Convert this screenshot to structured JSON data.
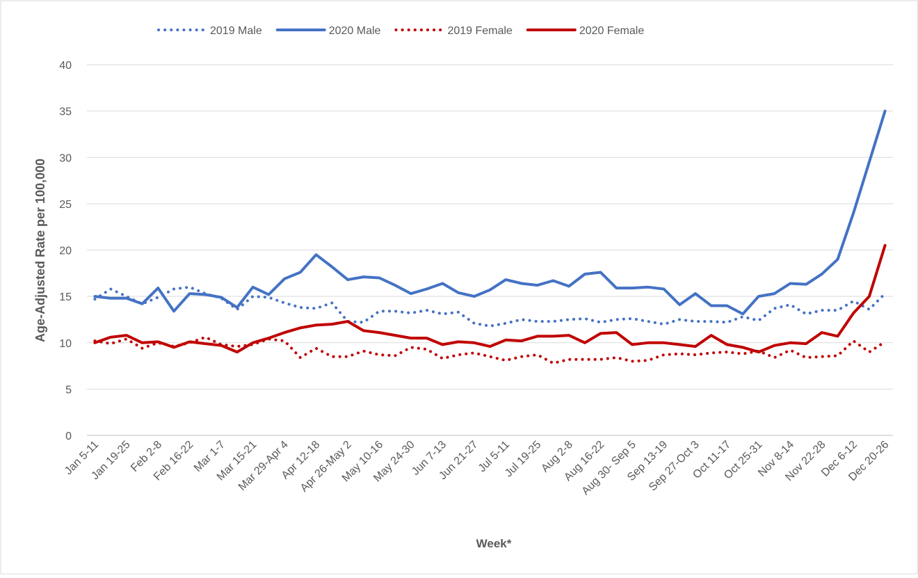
{
  "chart_data": {
    "type": "line",
    "x_label": "Week*",
    "y_label": "Age-Adjusted Rate per 100,000",
    "categories": [
      "Jan 5-11",
      null,
      "Jan 19-25",
      null,
      "Feb 2-8",
      null,
      "Feb 16-22",
      null,
      "Mar 1-7",
      null,
      "Mar 15-21",
      null,
      "Mar 29-Apr 4",
      null,
      "Apr 12-18",
      null,
      "Apr 26-May 2",
      null,
      "May 10-16",
      null,
      "May 24-30",
      null,
      "Jun 7-13",
      null,
      "Jun 21-27",
      null,
      "Jul 5-11",
      null,
      "Jul 19-25",
      null,
      "Aug 2-8",
      null,
      "Aug 16-22",
      null,
      "Aug 30- Sep 5",
      null,
      "Sep 13-19",
      null,
      "Sep 27-Oct 3",
      null,
      "Oct 11-17",
      null,
      "Oct 25-31",
      null,
      "Nov 8-14",
      null,
      "Nov 22-28",
      null,
      "Dec 6-12",
      null,
      "Dec 20-26"
    ],
    "series": [
      {
        "name": "2019 Male",
        "color": "#4472c4",
        "style": "dotted",
        "values": [
          14.7,
          15.8,
          15.0,
          14.2,
          14.9,
          15.8,
          16.0,
          15.3,
          14.8,
          13.6,
          15.0,
          14.9,
          14.3,
          13.8,
          13.7,
          14.3,
          12.3,
          12.2,
          13.4,
          13.4,
          13.2,
          13.5,
          13.1,
          13.3,
          12.1,
          11.8,
          12.1,
          12.5,
          12.3,
          12.3,
          12.5,
          12.6,
          12.2,
          12.5,
          12.6,
          12.3,
          12.0,
          12.5,
          12.3,
          12.3,
          12.2,
          12.8,
          12.4,
          13.7,
          14.1,
          13.1,
          13.5,
          13.5,
          14.5,
          13.6,
          15.3
        ]
      },
      {
        "name": "2020 Male",
        "color": "#4472c4",
        "style": "solid",
        "values": [
          15.0,
          14.8,
          14.8,
          14.2,
          15.9,
          13.4,
          15.3,
          15.2,
          14.9,
          13.8,
          16.0,
          15.2,
          16.9,
          17.6,
          19.5,
          18.2,
          16.8,
          17.1,
          17.0,
          16.2,
          15.3,
          15.8,
          16.4,
          15.4,
          15.0,
          15.7,
          16.8,
          16.4,
          16.2,
          16.7,
          16.1,
          17.4,
          17.6,
          15.9,
          15.9,
          16.0,
          15.8,
          14.1,
          15.3,
          14.0,
          14.0,
          13.1,
          15.0,
          15.3,
          16.4,
          16.3,
          17.4,
          19.0,
          24.0,
          29.5,
          35.0
        ]
      },
      {
        "name": "2019 Female",
        "color": "#c00000",
        "style": "dotted",
        "values": [
          10.2,
          9.9,
          10.4,
          9.4,
          10.0,
          9.6,
          10.0,
          10.6,
          9.8,
          9.6,
          9.8,
          10.4,
          10.2,
          8.4,
          9.4,
          8.5,
          8.5,
          9.1,
          8.7,
          8.6,
          9.5,
          9.3,
          8.3,
          8.7,
          8.9,
          8.5,
          8.1,
          8.5,
          8.7,
          7.8,
          8.2,
          8.2,
          8.2,
          8.4,
          8.0,
          8.1,
          8.7,
          8.8,
          8.7,
          8.9,
          9.0,
          8.8,
          9.1,
          8.4,
          9.2,
          8.4,
          8.5,
          8.6,
          10.2,
          9.0,
          10.1
        ]
      },
      {
        "name": "2020 Female",
        "color": "#c00000",
        "style": "solid",
        "values": [
          10.0,
          10.6,
          10.8,
          10.0,
          10.1,
          9.5,
          10.1,
          9.9,
          9.7,
          9.0,
          10.0,
          10.5,
          11.1,
          11.6,
          11.9,
          12.0,
          12.3,
          11.3,
          11.1,
          10.8,
          10.5,
          10.5,
          9.8,
          10.1,
          10.0,
          9.6,
          10.3,
          10.2,
          10.7,
          10.7,
          10.8,
          10.0,
          11.0,
          11.1,
          9.8,
          10.0,
          10.0,
          9.8,
          9.6,
          10.8,
          9.8,
          9.5,
          9.0,
          9.7,
          10.0,
          9.9,
          11.1,
          10.7,
          13.2,
          15.0,
          20.5
        ]
      }
    ],
    "ylim": [
      0,
      40
    ],
    "yticks": [
      0,
      5,
      10,
      15,
      20,
      25,
      30,
      35,
      40
    ],
    "grid": true,
    "legend": "top"
  }
}
